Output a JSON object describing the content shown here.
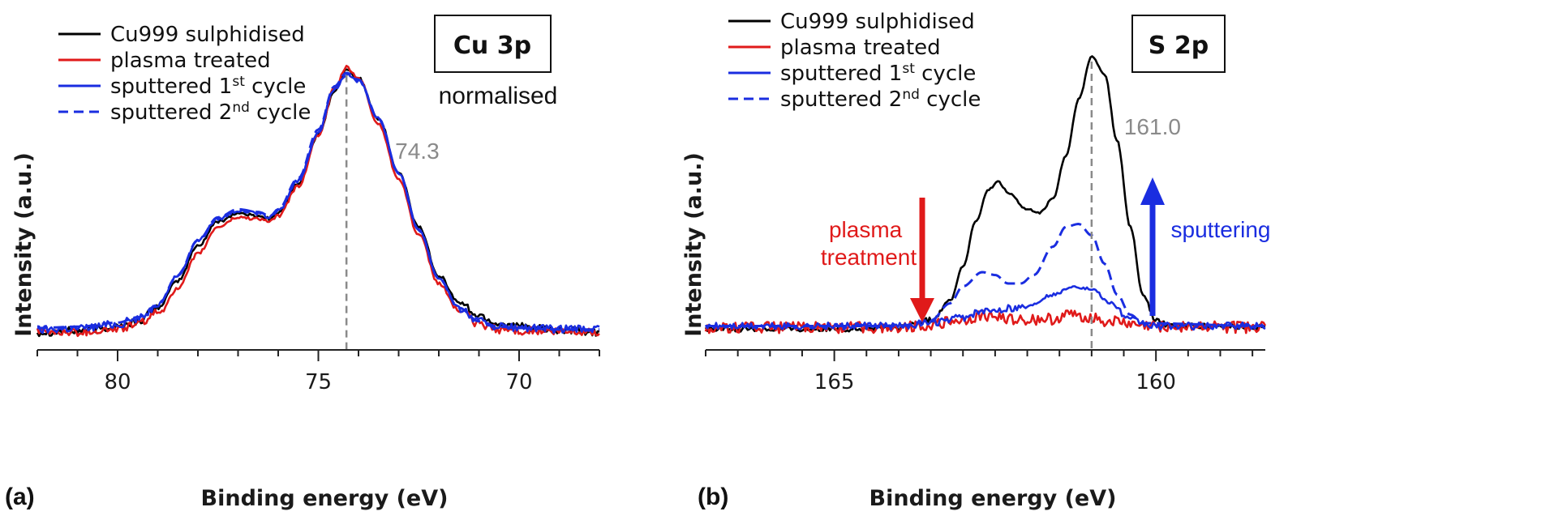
{
  "colors": {
    "cu999": "#000000",
    "plasma": "#e01a1a",
    "sputter1": "#1a2de0",
    "sputter2": "#1a2de0",
    "peak_line": "#8a8a8a",
    "plasma_arrow": "#e01a1a",
    "sputter_arrow": "#1a2de0"
  },
  "chart_data": [
    {
      "type": "line",
      "panel_label": "(a)",
      "title": "Cu 3p",
      "note": "normalised",
      "xlabel": "Binding energy (eV)",
      "ylabel": "Intensity (a.u.)",
      "xlim": [
        82,
        68
      ],
      "ylim": [
        0,
        1.08
      ],
      "x_reversed": true,
      "y_tick_labels": false,
      "xticks": [
        80,
        75,
        70
      ],
      "xtick_labels": [
        "80",
        "75",
        "70"
      ],
      "peak_marker": {
        "x": 74.3,
        "label": "74.3"
      },
      "legend_position": "top-left",
      "series": [
        {
          "name": "Cu999 sulphidised",
          "style": "solid",
          "color_key": "cu999",
          "noise": 0.006,
          "points": [
            [
              82,
              0.03
            ],
            [
              81,
              0.035
            ],
            [
              80,
              0.05
            ],
            [
              79.5,
              0.07
            ],
            [
              79,
              0.12
            ],
            [
              78.5,
              0.22
            ],
            [
              78,
              0.35
            ],
            [
              77.5,
              0.44
            ],
            [
              77.0,
              0.47
            ],
            [
              76.5,
              0.46
            ],
            [
              76.2,
              0.45
            ],
            [
              76.0,
              0.47
            ],
            [
              75.5,
              0.58
            ],
            [
              75,
              0.76
            ],
            [
              74.6,
              0.92
            ],
            [
              74.3,
              1.0
            ],
            [
              74.0,
              0.97
            ],
            [
              73.5,
              0.82
            ],
            [
              73,
              0.62
            ],
            [
              72.5,
              0.42
            ],
            [
              72,
              0.24
            ],
            [
              71.5,
              0.14
            ],
            [
              71,
              0.09
            ],
            [
              70.5,
              0.06
            ],
            [
              70,
              0.05
            ],
            [
              69,
              0.035
            ],
            [
              68,
              0.03
            ]
          ]
        },
        {
          "name": "plasma treated",
          "style": "solid",
          "color_key": "plasma",
          "noise": 0.006,
          "points": [
            [
              82,
              0.03
            ],
            [
              81,
              0.03
            ],
            [
              80,
              0.04
            ],
            [
              79.5,
              0.06
            ],
            [
              79,
              0.1
            ],
            [
              78.5,
              0.19
            ],
            [
              78,
              0.32
            ],
            [
              77.5,
              0.42
            ],
            [
              77.0,
              0.455
            ],
            [
              76.5,
              0.45
            ],
            [
              76.2,
              0.44
            ],
            [
              76.0,
              0.46
            ],
            [
              75.5,
              0.57
            ],
            [
              75,
              0.76
            ],
            [
              74.6,
              0.93
            ],
            [
              74.3,
              1.01
            ],
            [
              74.0,
              0.97
            ],
            [
              73.5,
              0.8
            ],
            [
              73,
              0.6
            ],
            [
              72.5,
              0.39
            ],
            [
              72,
              0.21
            ],
            [
              71.5,
              0.11
            ],
            [
              71,
              0.06
            ],
            [
              70.5,
              0.04
            ],
            [
              70,
              0.035
            ],
            [
              69,
              0.03
            ],
            [
              68,
              0.03
            ]
          ]
        },
        {
          "name": "sputtered 1st cycle",
          "style": "solid",
          "color_key": "sputter1",
          "noise": 0.006,
          "points": [
            [
              82,
              0.04
            ],
            [
              81,
              0.045
            ],
            [
              80,
              0.06
            ],
            [
              79.5,
              0.08
            ],
            [
              79,
              0.13
            ],
            [
              78.5,
              0.24
            ],
            [
              78,
              0.37
            ],
            [
              77.5,
              0.45
            ],
            [
              77.0,
              0.48
            ],
            [
              76.5,
              0.47
            ],
            [
              76.2,
              0.455
            ],
            [
              76.0,
              0.48
            ],
            [
              75.5,
              0.59
            ],
            [
              75,
              0.77
            ],
            [
              74.6,
              0.93
            ],
            [
              74.3,
              0.985
            ],
            [
              74.0,
              0.96
            ],
            [
              73.5,
              0.82
            ],
            [
              73,
              0.62
            ],
            [
              72.5,
              0.41
            ],
            [
              72,
              0.23
            ],
            [
              71.5,
              0.12
            ],
            [
              71,
              0.07
            ],
            [
              70.5,
              0.05
            ],
            [
              70,
              0.045
            ],
            [
              69,
              0.04
            ],
            [
              68,
              0.04
            ]
          ]
        },
        {
          "name": "sputtered 2nd cycle",
          "style": "dashed",
          "color_key": "sputter2",
          "noise": 0.0,
          "points": [
            [
              82,
              0.045
            ],
            [
              81,
              0.05
            ],
            [
              80,
              0.065
            ],
            [
              79.5,
              0.085
            ],
            [
              79,
              0.13
            ],
            [
              78.5,
              0.24
            ],
            [
              78,
              0.37
            ],
            [
              77.5,
              0.455
            ],
            [
              77.0,
              0.485
            ],
            [
              76.5,
              0.475
            ],
            [
              76.2,
              0.46
            ],
            [
              76.0,
              0.485
            ],
            [
              75.5,
              0.6
            ],
            [
              75,
              0.78
            ],
            [
              74.6,
              0.94
            ],
            [
              74.3,
              0.99
            ],
            [
              74.0,
              0.965
            ],
            [
              73.5,
              0.82
            ],
            [
              73,
              0.62
            ],
            [
              72.5,
              0.41
            ],
            [
              72,
              0.23
            ],
            [
              71.5,
              0.12
            ],
            [
              71,
              0.07
            ],
            [
              70.5,
              0.05
            ],
            [
              70,
              0.045
            ],
            [
              69,
              0.04
            ],
            [
              68,
              0.04
            ]
          ]
        }
      ]
    },
    {
      "type": "line",
      "panel_label": "(b)",
      "title": "S 2p",
      "xlabel": "Binding energy (eV)",
      "ylabel": "Intensity (a.u.)",
      "xlim": [
        167,
        158.3
      ],
      "ylim": [
        0,
        1.08
      ],
      "x_reversed": true,
      "y_tick_labels": false,
      "xticks": [
        165,
        160
      ],
      "xtick_labels": [
        "165",
        "160"
      ],
      "peak_marker": {
        "x": 161.0,
        "label": "161.0"
      },
      "legend_position": "top-left",
      "annotations": {
        "plasma_treatment": "plasma\ntreatment",
        "sputtering": "sputtering"
      },
      "series": [
        {
          "name": "Cu999 sulphidised",
          "style": "solid",
          "color_key": "cu999",
          "noise": 0.004,
          "points": [
            [
              167,
              0.04
            ],
            [
              165,
              0.04
            ],
            [
              164,
              0.045
            ],
            [
              163.5,
              0.07
            ],
            [
              163.2,
              0.14
            ],
            [
              163,
              0.26
            ],
            [
              162.8,
              0.42
            ],
            [
              162.6,
              0.53
            ],
            [
              162.45,
              0.56
            ],
            [
              162.3,
              0.52
            ],
            [
              162.0,
              0.46
            ],
            [
              161.8,
              0.45
            ],
            [
              161.6,
              0.5
            ],
            [
              161.4,
              0.65
            ],
            [
              161.2,
              0.85
            ],
            [
              161.0,
              1.0
            ],
            [
              160.8,
              0.94
            ],
            [
              160.6,
              0.7
            ],
            [
              160.4,
              0.4
            ],
            [
              160.2,
              0.16
            ],
            [
              160.0,
              0.07
            ],
            [
              159.8,
              0.05
            ],
            [
              158.3,
              0.045
            ]
          ]
        },
        {
          "name": "plasma treated",
          "style": "solid",
          "color_key": "plasma",
          "noise": 0.008,
          "points": [
            [
              167,
              0.045
            ],
            [
              165,
              0.045
            ],
            [
              164,
              0.045
            ],
            [
              163.5,
              0.055
            ],
            [
              163,
              0.07
            ],
            [
              162.7,
              0.085
            ],
            [
              162.4,
              0.08
            ],
            [
              162,
              0.07
            ],
            [
              161.6,
              0.075
            ],
            [
              161.3,
              0.09
            ],
            [
              161.0,
              0.08
            ],
            [
              160.7,
              0.065
            ],
            [
              160.2,
              0.05
            ],
            [
              158.3,
              0.045
            ]
          ]
        },
        {
          "name": "sputtered 1st cycle",
          "style": "solid",
          "color_key": "sputter1",
          "noise": 0.005,
          "points": [
            [
              167,
              0.05
            ],
            [
              165,
              0.05
            ],
            [
              164,
              0.05
            ],
            [
              163.5,
              0.06
            ],
            [
              163,
              0.08
            ],
            [
              162.7,
              0.1
            ],
            [
              162.4,
              0.11
            ],
            [
              162,
              0.12
            ],
            [
              161.6,
              0.16
            ],
            [
              161.3,
              0.19
            ],
            [
              161.0,
              0.18
            ],
            [
              160.7,
              0.13
            ],
            [
              160.4,
              0.07
            ],
            [
              160.0,
              0.05
            ],
            [
              158.3,
              0.05
            ]
          ]
        },
        {
          "name": "sputtered 2nd cycle",
          "style": "dashed",
          "color_key": "sputter2",
          "noise": 0.0,
          "points": [
            [
              167,
              0.05
            ],
            [
              165,
              0.05
            ],
            [
              164,
              0.05
            ],
            [
              163.5,
              0.07
            ],
            [
              163.2,
              0.13
            ],
            [
              163,
              0.19
            ],
            [
              162.7,
              0.24
            ],
            [
              162.5,
              0.23
            ],
            [
              162.3,
              0.2
            ],
            [
              162.1,
              0.2
            ],
            [
              161.9,
              0.23
            ],
            [
              161.6,
              0.33
            ],
            [
              161.4,
              0.4
            ],
            [
              161.2,
              0.41
            ],
            [
              161.0,
              0.37
            ],
            [
              160.8,
              0.27
            ],
            [
              160.6,
              0.16
            ],
            [
              160.4,
              0.09
            ],
            [
              160.2,
              0.06
            ],
            [
              158.3,
              0.05
            ]
          ]
        }
      ]
    }
  ]
}
